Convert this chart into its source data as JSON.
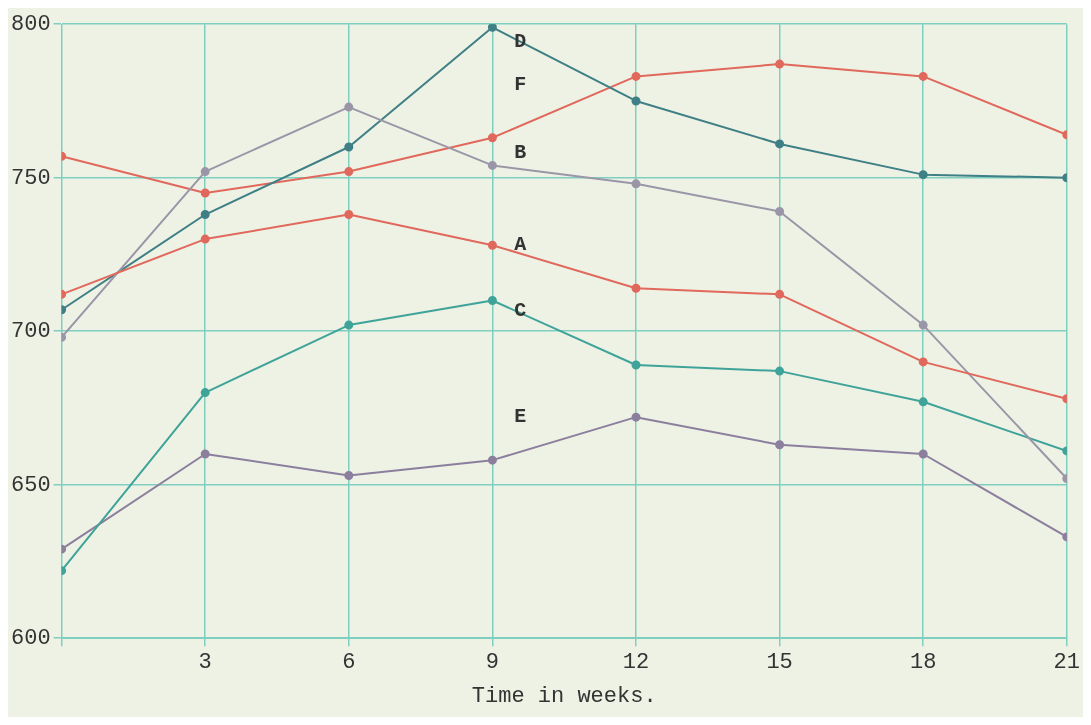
{
  "chart_data": {
    "type": "line",
    "xlabel": "Time in weeks.",
    "x": [
      0,
      3,
      6,
      9,
      12,
      15,
      18,
      21
    ],
    "series": [
      {
        "name": "A",
        "color": "#e0685c",
        "values": [
          712,
          730,
          738,
          728,
          714,
          712,
          690,
          678
        ]
      },
      {
        "name": "B",
        "color": "#9a96a8",
        "values": [
          698,
          752,
          773,
          754,
          748,
          739,
          702,
          652
        ]
      },
      {
        "name": "C",
        "color": "#3fa39a",
        "values": [
          622,
          680,
          702,
          710,
          689,
          687,
          677,
          661
        ]
      },
      {
        "name": "D",
        "color": "#3f7f86",
        "values": [
          707,
          738,
          760,
          799,
          775,
          761,
          751,
          750
        ]
      },
      {
        "name": "E",
        "color": "#8c7f9e",
        "values": [
          629,
          660,
          653,
          658,
          672,
          663,
          660,
          633
        ]
      },
      {
        "name": "F",
        "color": "#e0685c",
        "values": [
          757,
          745,
          752,
          763,
          783,
          787,
          783,
          764
        ]
      }
    ],
    "xlim": [
      0,
      21
    ],
    "xticks": [
      {
        "value": 0,
        "label": null
      },
      3,
      6,
      9,
      12,
      15,
      18,
      21
    ],
    "ylim": [
      600,
      800
    ],
    "yticks": [
      600,
      650,
      700,
      750,
      800
    ],
    "grid": true,
    "legend": false,
    "marker": "circle",
    "line_style": "solid"
  }
}
